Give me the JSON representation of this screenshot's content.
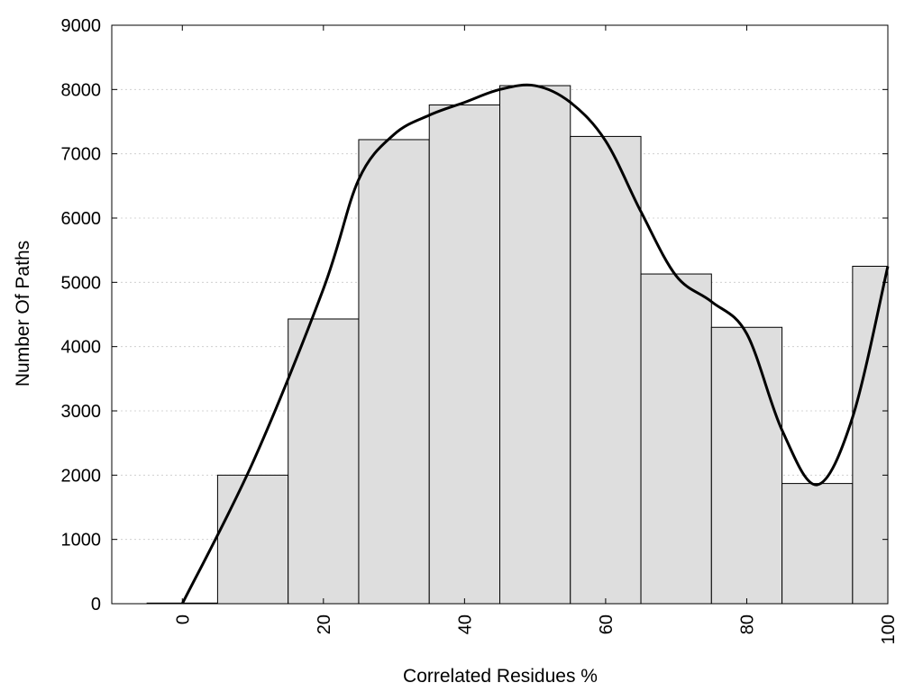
{
  "chart_data": {
    "type": "bar",
    "xlabel": "Correlated Residues %",
    "ylabel": "Number Of Paths",
    "xlim": [
      -10,
      100
    ],
    "ylim": [
      0,
      9000
    ],
    "x_ticks": [
      0,
      20,
      40,
      60,
      80,
      100
    ],
    "y_ticks": [
      0,
      1000,
      2000,
      3000,
      4000,
      5000,
      6000,
      7000,
      8000,
      9000
    ],
    "bin_width": 10,
    "categories": [
      0,
      10,
      20,
      30,
      40,
      50,
      60,
      70,
      80,
      90,
      100
    ],
    "values": [
      10,
      2000,
      4430,
      7220,
      7760,
      8060,
      7270,
      5130,
      4300,
      1870,
      5250
    ],
    "grid": "horizontal dotted",
    "colors": {
      "bar_fill": "#dedede",
      "bar_edge": "#000000",
      "curve": "#000000"
    },
    "curve": {
      "type": "line",
      "x": [
        0,
        10,
        20,
        25,
        30,
        35,
        40,
        45,
        50,
        55,
        60,
        65,
        70,
        75,
        80,
        85,
        90,
        95,
        100
      ],
      "values": [
        0,
        2200,
        4900,
        6600,
        7300,
        7600,
        7800,
        8000,
        8060,
        7800,
        7200,
        6100,
        5100,
        4700,
        4200,
        2700,
        1850,
        2900,
        5250
      ]
    }
  }
}
